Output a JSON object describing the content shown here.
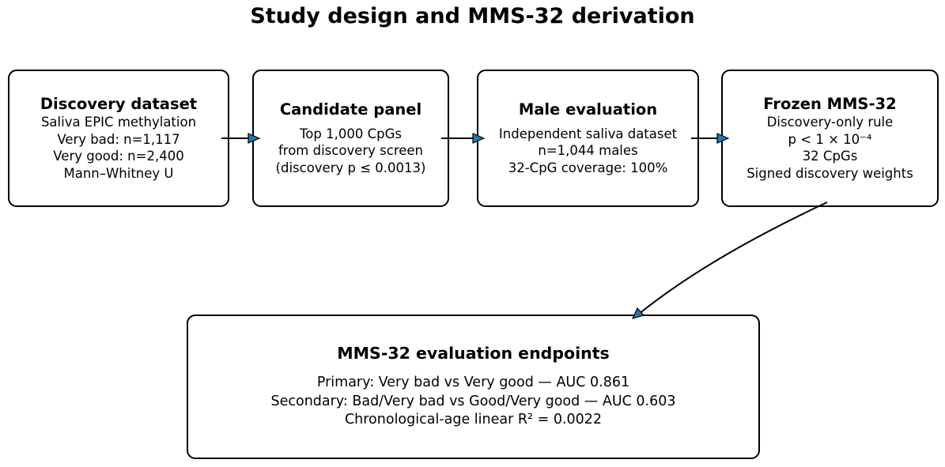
{
  "title": "Study design and MMS-32 derivation",
  "boxes": {
    "discovery": {
      "heading": "Discovery dataset",
      "lines": [
        "Saliva EPIC methylation",
        "Very bad: n=1,117",
        "Very good: n=2,400",
        "Mann–Whitney U"
      ]
    },
    "candidate": {
      "heading": "Candidate panel",
      "lines": [
        "Top 1,000 CpGs",
        "from discovery screen",
        "(discovery p ≤ 0.0013)"
      ]
    },
    "male": {
      "heading": "Male evaluation",
      "lines": [
        "Independent saliva dataset",
        "n=1,044 males",
        "32-CpG coverage: 100%"
      ]
    },
    "frozen": {
      "heading": "Frozen MMS-32",
      "lines": [
        "Discovery-only rule",
        "p < 1 × 10⁻⁴",
        "32 CpGs",
        "Signed discovery weights"
      ]
    },
    "endpoints": {
      "heading": "MMS-32 evaluation endpoints",
      "lines": [
        "Primary: Very bad vs Very good — AUC 0.861",
        "Secondary: Bad/Very bad vs Good/Very good — AUC 0.603",
        "Chronological-age linear R² = 0.0022"
      ]
    }
  },
  "colors": {
    "arrowhead": "#1f77b4",
    "stroke": "#000000"
  }
}
